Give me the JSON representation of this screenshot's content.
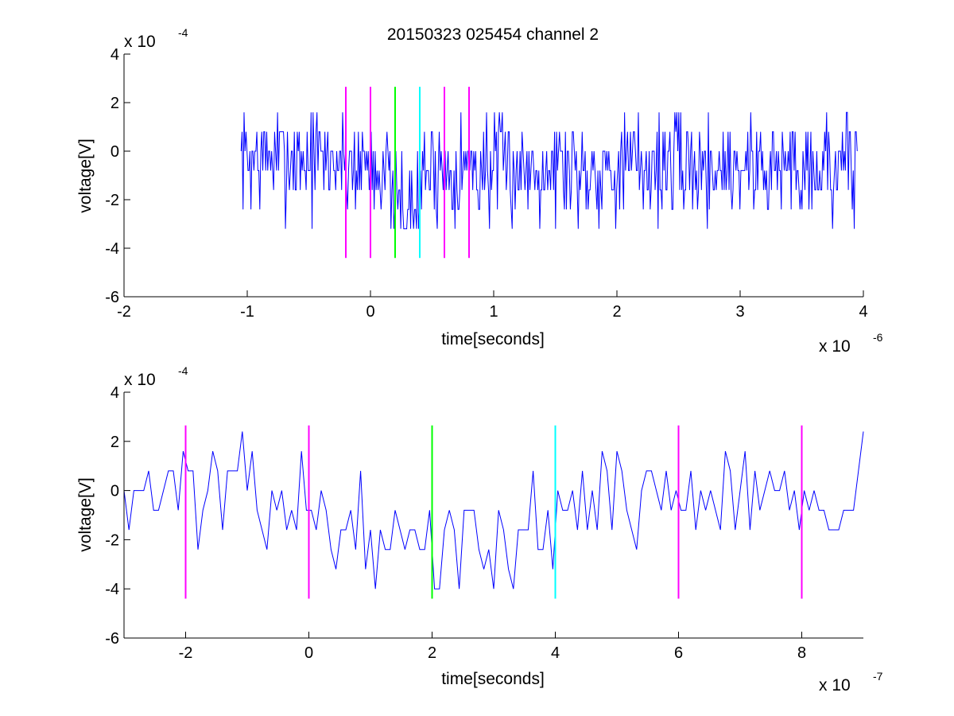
{
  "figure": {
    "title": "20150323 025454 channel 2"
  },
  "chart_data": [
    {
      "type": "line",
      "title": "20150323 025454 channel 2",
      "xlabel": "time[seconds]",
      "ylabel": "voltage[V]",
      "x_multiplier": "x 10",
      "x_exponent": "-6",
      "y_multiplier": "x 10",
      "y_exponent": "-4",
      "xlim": [
        -2,
        4
      ],
      "ylim": [
        -6,
        4
      ],
      "xticks": [
        -2,
        -1,
        0,
        1,
        2,
        3,
        4
      ],
      "yticks": [
        -6,
        -4,
        -2,
        0,
        2,
        4
      ],
      "xtick_labels": [
        "-2",
        "-1",
        "0",
        "1",
        "2",
        "3",
        "4"
      ],
      "ytick_labels": [
        "-6",
        "-4",
        "-2",
        "0",
        "2",
        "4"
      ],
      "grid": false,
      "signal": {
        "color": "#0000ff",
        "x_start": -1.05,
        "x_end": 3.95,
        "x_step": 0.008,
        "levels": [
          -3.2,
          -2.4,
          -1.6,
          -0.8,
          0,
          0.8,
          1.6
        ],
        "random_seed": 7,
        "noise_levels": 1.4,
        "dip": [
          {
            "from": -1.05,
            "to": -0.3,
            "offset": -0.3
          },
          {
            "from": -0.3,
            "to": 0.15,
            "offset": -0.5
          },
          {
            "from": 0.15,
            "to": 0.42,
            "offset": -2.3
          },
          {
            "from": 0.42,
            "to": 3.95,
            "offset": -0.6
          }
        ]
      },
      "markers": [
        {
          "x": -0.2,
          "y0": -4.4,
          "y1": 2.65,
          "color": "#ff00ff"
        },
        {
          "x": 0.0,
          "y0": -4.4,
          "y1": 2.65,
          "color": "#ff00ff"
        },
        {
          "x": 0.2,
          "y0": -4.4,
          "y1": 2.65,
          "color": "#00ff00"
        },
        {
          "x": 0.4,
          "y0": -4.4,
          "y1": 2.65,
          "color": "#00ffff"
        },
        {
          "x": 0.6,
          "y0": -4.4,
          "y1": 2.65,
          "color": "#ff00ff"
        },
        {
          "x": 0.8,
          "y0": -4.4,
          "y1": 2.65,
          "color": "#ff00ff"
        }
      ]
    },
    {
      "type": "line",
      "title": "",
      "xlabel": "time[seconds]",
      "ylabel": "voltage[V]",
      "x_multiplier": "x 10",
      "x_exponent": "-7",
      "y_multiplier": "x 10",
      "y_exponent": "-4",
      "xlim": [
        -3,
        9
      ],
      "ylim": [
        -6,
        4
      ],
      "xticks": [
        -2,
        0,
        2,
        4,
        6,
        8
      ],
      "yticks": [
        -6,
        -4,
        -2,
        0,
        2,
        4
      ],
      "xtick_labels": [
        "-2",
        "0",
        "2",
        "4",
        "6",
        "8"
      ],
      "ytick_labels": [
        "-6",
        "-4",
        "-2",
        "0",
        "2",
        "4"
      ],
      "grid": false,
      "signal": {
        "color": "#0000ff",
        "x_start": -3,
        "x_end": 9,
        "x_step": 0.08,
        "levels": [
          -4.0,
          -3.2,
          -2.4,
          -1.6,
          -0.8,
          0,
          0.8,
          1.6,
          2.4
        ],
        "random_seed": 13,
        "noise_levels": 1.3,
        "dip": [
          {
            "from": -3,
            "to": -1.2,
            "offset": 0.0
          },
          {
            "from": -1.2,
            "to": 0.0,
            "offset": -0.4
          },
          {
            "from": 0.0,
            "to": 1.3,
            "offset": -1.5
          },
          {
            "from": 1.3,
            "to": 3.4,
            "offset": -2.4
          },
          {
            "from": 3.4,
            "to": 4.0,
            "offset": -1.8
          },
          {
            "from": 4.0,
            "to": 9,
            "offset": -0.2
          }
        ]
      },
      "markers": [
        {
          "x": -2,
          "y0": -4.4,
          "y1": 2.65,
          "color": "#ff00ff"
        },
        {
          "x": 0,
          "y0": -4.4,
          "y1": 2.65,
          "color": "#ff00ff"
        },
        {
          "x": 2,
          "y0": -4.4,
          "y1": 2.65,
          "color": "#00ff00"
        },
        {
          "x": 4,
          "y0": -4.4,
          "y1": 2.65,
          "color": "#00ffff"
        },
        {
          "x": 6,
          "y0": -4.4,
          "y1": 2.65,
          "color": "#ff00ff"
        },
        {
          "x": 8,
          "y0": -4.4,
          "y1": 2.65,
          "color": "#ff00ff"
        }
      ]
    }
  ]
}
